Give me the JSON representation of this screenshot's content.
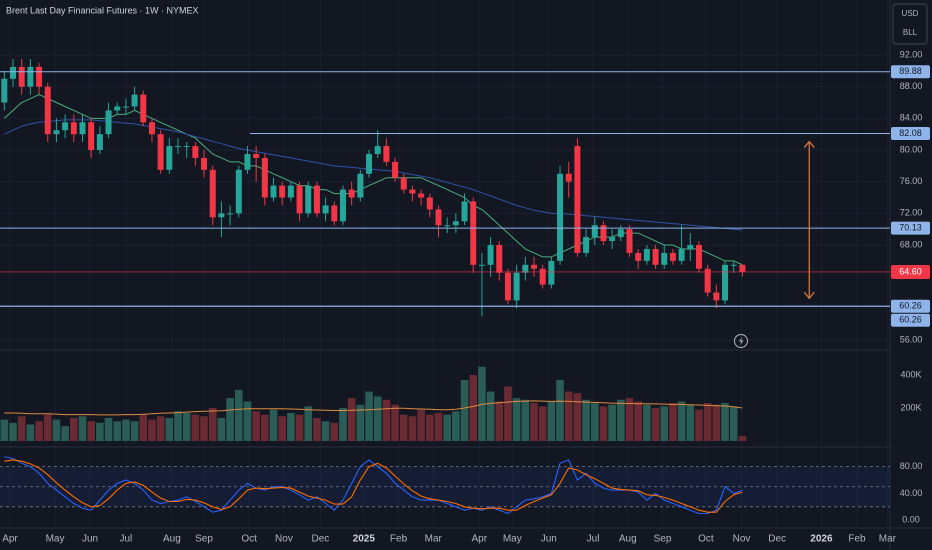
{
  "chart_data": [
    {
      "type": "candlestick",
      "title": "Brent Last Day Financial Futures · 1W · NYMEX",
      "currency": "USD",
      "unit": "BLL",
      "xlim": [
        -0.5,
        102
      ],
      "xticks": [
        {
          "value": 0.65,
          "label": "Apr"
        },
        {
          "value": 5.84,
          "label": "May"
        },
        {
          "value": 9.87,
          "label": "Jun"
        },
        {
          "value": 14.0,
          "label": "Jul"
        },
        {
          "value": 19.3,
          "label": "Aug"
        },
        {
          "value": 23.0,
          "label": "Sep"
        },
        {
          "value": 28.2,
          "label": "Oct"
        },
        {
          "value": 32.2,
          "label": "Nov"
        },
        {
          "value": 36.4,
          "label": "Dec"
        },
        {
          "value": 41.4,
          "label": "2025"
        },
        {
          "value": 45.4,
          "label": "Feb"
        },
        {
          "value": 49.4,
          "label": "Mar"
        },
        {
          "value": 54.7,
          "label": "Apr"
        },
        {
          "value": 58.5,
          "label": "May"
        },
        {
          "value": 62.7,
          "label": "Jun"
        },
        {
          "value": 67.8,
          "label": "Jul"
        },
        {
          "value": 71.8,
          "label": "Aug"
        },
        {
          "value": 75.8,
          "label": "Sep"
        },
        {
          "value": 80.8,
          "label": "Oct"
        },
        {
          "value": 84.9,
          "label": "Nov"
        },
        {
          "value": 89.0,
          "label": "Dec"
        },
        {
          "value": 94.1,
          "label": "2026"
        },
        {
          "value": 98.2,
          "label": "Feb"
        },
        {
          "value": 101.7,
          "label": "Mar"
        }
      ],
      "ylim": [
        54.74,
        98.95
      ],
      "yticks": [
        {
          "value": 92,
          "label": "92.00"
        },
        {
          "value": 88,
          "label": "88.00"
        },
        {
          "value": 84,
          "label": "84.00"
        },
        {
          "value": 80,
          "label": "80.00"
        },
        {
          "value": 76,
          "label": "76.00"
        },
        {
          "value": 72,
          "label": "72.00"
        },
        {
          "value": 68,
          "label": "68.00"
        },
        {
          "value": 56,
          "label": "56.00"
        }
      ],
      "grid": true,
      "up_color": "#26a69a",
      "down_color": "#f23645",
      "open": [
        86,
        89,
        90.5,
        88,
        90.5,
        88,
        82,
        82.5,
        83.5,
        82,
        83.5,
        80,
        82,
        85,
        85.5,
        85.5,
        87,
        83.5,
        82,
        77.5,
        80.5,
        80.5,
        80.5,
        79,
        77.5,
        71.5,
        72,
        72,
        77.5,
        79.5,
        79,
        74,
        75.5,
        74,
        75.5,
        72,
        75.5,
        72,
        73,
        71,
        75,
        74,
        77,
        79.5,
        80.5,
        78.5,
        76.5,
        75,
        74.5,
        74,
        72.5,
        70.5,
        70.5,
        71,
        73.5,
        65.5,
        65.5,
        68,
        64.5,
        61,
        64.5,
        65.5,
        65,
        63,
        66,
        77,
        80.5,
        67,
        69,
        70.5,
        68.5,
        69,
        70,
        67,
        66,
        67.5,
        65.5,
        67,
        66,
        67.5,
        68,
        65,
        62,
        61,
        65.5,
        65.5
      ],
      "high": [
        90,
        91.5,
        91.5,
        91.5,
        91,
        88.5,
        84,
        84.5,
        84.5,
        84.5,
        84,
        83,
        86,
        86,
        86.5,
        88,
        87.5,
        84,
        82.5,
        81.5,
        81.5,
        81,
        81,
        80,
        78,
        73.5,
        73,
        78,
        80.5,
        80.5,
        79.5,
        76.5,
        76,
        76,
        76,
        76,
        76,
        74,
        73.5,
        75.5,
        76,
        77.5,
        80,
        82.5,
        81.5,
        79,
        77,
        75.5,
        75,
        74.5,
        73,
        71.5,
        72,
        74.5,
        74,
        67,
        69,
        68.5,
        65,
        65.5,
        66.5,
        66.5,
        65.5,
        66.5,
        78,
        78.5,
        81.5,
        70,
        71.5,
        71,
        70,
        70.5,
        70.5,
        67.5,
        68,
        68,
        68,
        67.5,
        70.5,
        69.5,
        68.5,
        65.5,
        63,
        66,
        66,
        65.5
      ],
      "low": [
        85,
        88,
        87,
        87,
        87,
        81,
        81,
        81.5,
        81,
        81,
        79,
        79.5,
        81.5,
        84.5,
        84.5,
        85,
        83,
        81,
        77,
        77,
        79.5,
        79,
        78,
        76.5,
        70.5,
        69,
        70.5,
        71.5,
        77,
        76,
        73,
        73.5,
        73,
        73.5,
        71,
        71.5,
        71.5,
        71,
        70.5,
        70.5,
        73,
        73.5,
        76.5,
        79,
        78,
        76,
        74.5,
        73.5,
        73,
        71.5,
        69,
        69.5,
        69.5,
        70.5,
        64.5,
        59,
        64,
        63.5,
        60.5,
        60,
        63.5,
        64,
        62.5,
        62.5,
        65.5,
        74,
        66.5,
        66.5,
        68,
        68,
        67.5,
        68.5,
        66.5,
        65,
        65.5,
        65,
        65,
        65.5,
        65.5,
        66,
        64.5,
        61.5,
        60,
        60.5,
        64.5,
        64
      ],
      "close": [
        89,
        90.5,
        88,
        90.5,
        88,
        82,
        82.5,
        83.5,
        82,
        83.5,
        80,
        82,
        85,
        85.5,
        85.5,
        87,
        83.5,
        82,
        77.5,
        80.5,
        80.5,
        80.5,
        79,
        77.5,
        71.5,
        72,
        72,
        77.5,
        79.5,
        79,
        74,
        75.5,
        74,
        75.5,
        72,
        75.5,
        72,
        73,
        71,
        75,
        74,
        77,
        79.5,
        80.5,
        78.5,
        76.5,
        75,
        74.5,
        74,
        72.5,
        70.5,
        70.5,
        71,
        73.5,
        65.5,
        65.5,
        68,
        64.5,
        61,
        64.5,
        65.5,
        65,
        63,
        66,
        77,
        76,
        67,
        69,
        70.5,
        68.5,
        69,
        70,
        67,
        66,
        67.5,
        65.5,
        67,
        66,
        67.5,
        68,
        65,
        62,
        61,
        65.5,
        65.5,
        64.6
      ],
      "series": [
        {
          "color": "#4caf7a",
          "values": [
            84,
            85,
            86,
            86.5,
            87,
            86.5,
            86,
            85.5,
            85,
            84.5,
            84,
            84,
            84,
            84.5,
            84.5,
            85,
            84.5,
            84,
            83.5,
            83,
            82.5,
            82,
            81.5,
            80.5,
            79.5,
            79,
            78.5,
            78.5,
            78,
            78,
            77.5,
            77,
            76.5,
            76,
            75.5,
            75.5,
            75,
            75,
            74.5,
            74.5,
            74.5,
            75,
            75.5,
            76,
            76.5,
            76.5,
            76.5,
            76.5,
            76.5,
            76,
            75.5,
            75,
            74.5,
            74,
            73,
            72.5,
            71.5,
            70.5,
            69.5,
            68.5,
            67.5,
            67,
            66.5,
            66.5,
            67,
            67.5,
            68,
            68.5,
            69,
            69,
            69,
            69.5,
            69.5,
            69.5,
            69,
            68.5,
            68,
            68,
            67.5,
            67.5,
            67.5,
            67,
            66.5,
            66,
            66,
            65.5
          ]
        },
        {
          "color": "#2f52a8",
          "values": [
            82,
            82.5,
            83,
            83.3,
            83.5,
            83.6,
            83.7,
            83.8,
            83.8,
            83.8,
            83.8,
            83.7,
            83.6,
            83.5,
            83.4,
            83.3,
            83.1,
            82.9,
            82.7,
            82.5,
            82.3,
            82,
            81.7,
            81.4,
            81.1,
            80.8,
            80.5,
            80.2,
            80,
            79.8,
            79.6,
            79.4,
            79.2,
            79,
            78.8,
            78.6,
            78.4,
            78.2,
            78,
            77.9,
            77.8,
            77.7,
            77.6,
            77.5,
            77.4,
            77.3,
            77.1,
            76.9,
            76.7,
            76.5,
            76.2,
            75.9,
            75.6,
            75.3,
            75,
            74.6,
            74.2,
            73.8,
            73.4,
            73,
            72.7,
            72.4,
            72.2,
            72,
            72,
            71.9,
            71.8,
            71.7,
            71.6,
            71.5,
            71.4,
            71.3,
            71.2,
            71.1,
            71,
            70.9,
            70.8,
            70.7,
            70.6,
            70.5,
            70.4,
            70.3,
            70.2,
            70.1,
            70,
            69.9
          ]
        }
      ],
      "level_color": "#8fb4ea",
      "levels": [
        {
          "value": 89.88
        },
        {
          "value": 82.08,
          "start": 28.3
        },
        {
          "value": 70.13
        },
        {
          "value": 60.26
        },
        {
          "value": 60.26
        }
      ],
      "last_price": {
        "value": 64.6,
        "label": "64.60",
        "color": "#f23645"
      }
    },
    {
      "type": "bar",
      "ylim": [
        -12000,
        551500
      ],
      "yticks": [
        {
          "value": 400000,
          "label": "400K"
        },
        {
          "value": 200000,
          "label": "200K"
        }
      ],
      "up_color": "#2a5d55",
      "down_color": "#6a2a34",
      "values": [
        130000,
        110000,
        150000,
        100000,
        120000,
        160000,
        130000,
        90000,
        140000,
        150000,
        120000,
        110000,
        140000,
        120000,
        130000,
        120000,
        160000,
        130000,
        150000,
        140000,
        180000,
        170000,
        160000,
        150000,
        200000,
        140000,
        260000,
        310000,
        240000,
        180000,
        160000,
        190000,
        150000,
        170000,
        160000,
        210000,
        140000,
        120000,
        110000,
        200000,
        260000,
        220000,
        300000,
        270000,
        250000,
        220000,
        160000,
        150000,
        190000,
        160000,
        170000,
        160000,
        180000,
        370000,
        400000,
        450000,
        300000,
        240000,
        330000,
        260000,
        250000,
        230000,
        210000,
        240000,
        370000,
        300000,
        290000,
        250000,
        230000,
        210000,
        220000,
        250000,
        260000,
        240000,
        220000,
        200000,
        210000,
        230000,
        240000,
        220000,
        190000,
        230000,
        220000,
        230000,
        210000,
        30000
      ],
      "series": [
        {
          "color": "#e08a3c",
          "values": [
            170000,
            170000,
            168000,
            165000,
            165000,
            165000,
            163000,
            160000,
            160000,
            160000,
            160000,
            158000,
            158000,
            158000,
            160000,
            160000,
            162000,
            165000,
            168000,
            170000,
            172000,
            175000,
            178000,
            180000,
            182000,
            184000,
            188000,
            192000,
            195000,
            195000,
            195000,
            196000,
            195000,
            194000,
            192000,
            190000,
            188000,
            186000,
            185000,
            185000,
            186000,
            188000,
            190000,
            192000,
            195000,
            198000,
            198000,
            196000,
            194000,
            192000,
            190000,
            190000,
            192000,
            200000,
            210000,
            222000,
            228000,
            232000,
            236000,
            240000,
            242000,
            243000,
            242000,
            240000,
            242000,
            240000,
            238000,
            236000,
            234000,
            232000,
            230000,
            228000,
            228000,
            226000,
            226000,
            225000,
            224000,
            222000,
            222000,
            220000,
            218000,
            216000,
            214000,
            212000,
            208000,
            200000
          ]
        }
      ]
    },
    {
      "type": "line",
      "ylim": [
        -11.6,
        101.8
      ],
      "yticks": [
        {
          "value": 80,
          "label": "80.00"
        },
        {
          "value": 40,
          "label": "40.00"
        },
        {
          "value": 0,
          "label": "0.00"
        }
      ],
      "levels": [
        20,
        50,
        80
      ],
      "series": [
        {
          "color": "#2962ff",
          "values": [
            95,
            92,
            85,
            80,
            70,
            55,
            45,
            35,
            25,
            18,
            15,
            30,
            45,
            55,
            60,
            55,
            45,
            30,
            25,
            28,
            30,
            35,
            28,
            20,
            12,
            15,
            30,
            45,
            55,
            48,
            45,
            50,
            50,
            45,
            38,
            30,
            35,
            25,
            15,
            30,
            55,
            80,
            90,
            80,
            70,
            55,
            45,
            35,
            30,
            30,
            30,
            25,
            20,
            15,
            18,
            15,
            20,
            15,
            10,
            20,
            30,
            32,
            35,
            40,
            85,
            90,
            60,
            70,
            55,
            48,
            45,
            45,
            45,
            42,
            30,
            40,
            30,
            25,
            20,
            15,
            10,
            10,
            15,
            50,
            40,
            45
          ]
        },
        {
          "color": "#ff6d00",
          "values": [
            88,
            90,
            88,
            84,
            78,
            68,
            56,
            45,
            35,
            26,
            20,
            22,
            32,
            45,
            55,
            57,
            52,
            42,
            33,
            28,
            28,
            31,
            30,
            26,
            20,
            16,
            20,
            32,
            45,
            48,
            47,
            48,
            49,
            48,
            42,
            36,
            33,
            30,
            24,
            24,
            35,
            60,
            80,
            85,
            78,
            66,
            54,
            44,
            36,
            32,
            30,
            28,
            25,
            20,
            18,
            17,
            18,
            18,
            15,
            15,
            22,
            28,
            33,
            38,
            55,
            78,
            75,
            68,
            62,
            55,
            48,
            46,
            45,
            44,
            38,
            37,
            34,
            30,
            25,
            20,
            15,
            12,
            12,
            28,
            38,
            42
          ]
        }
      ]
    }
  ]
}
